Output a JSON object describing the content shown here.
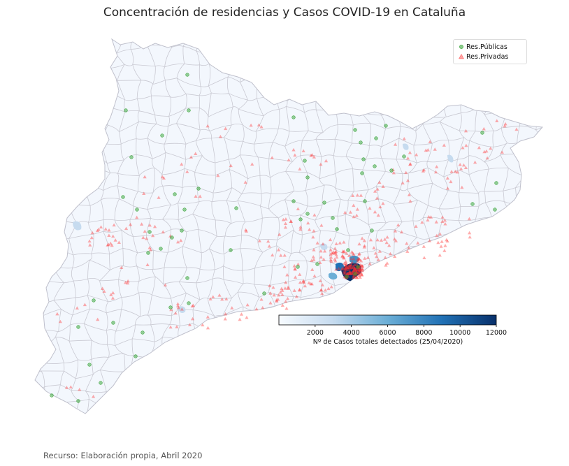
{
  "title": "Concentración de residencias y Casos COVID-19 en Cataluña",
  "source": "Recurso: Elaboración propia, Abril 2020",
  "legend": {
    "public": "Res.Públicas",
    "private": "Res.Privadas"
  },
  "colors": {
    "public": "#2ca02c",
    "private": "#ff3030",
    "region_fill": "#f3f7fd",
    "region_stroke": "#c9c9d2"
  },
  "colorbar": {
    "label": "Nº de Casos totales detectados (25/04/2020)",
    "min": 0,
    "max": 12000,
    "ticks": [
      "2000",
      "4000",
      "6000",
      "8000",
      "10000",
      "12000"
    ],
    "colormap": "Blues"
  }
}
